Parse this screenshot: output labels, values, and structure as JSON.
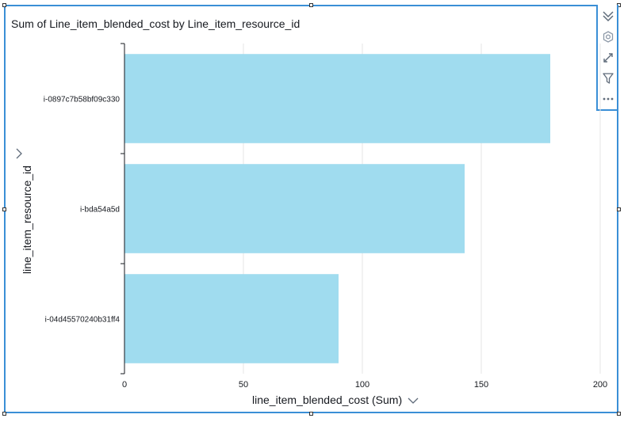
{
  "chart_data": {
    "type": "bar",
    "orientation": "horizontal",
    "title": "Sum of Line_item_blended_cost by Line_item_resource_id",
    "xlabel": "line_item_blended_cost (Sum)",
    "ylabel": "line_item_resource_id",
    "categories": [
      "i-0897c7b58bf09c330",
      "i-bda54a5d",
      "i-04d45570240b31ff4"
    ],
    "values": [
      179,
      143,
      90
    ],
    "xlim": [
      0,
      200
    ],
    "xticks": [
      "0",
      "50",
      "100",
      "150",
      "200"
    ],
    "grid": true,
    "bar_color": "#a0dcef"
  },
  "toolbar": {
    "icons": [
      "collapse-icon",
      "settings-icon",
      "expand-icon",
      "filter-icon",
      "more-options-icon"
    ]
  },
  "colors": {
    "selection_border": "#3a8fd6",
    "grid": "#e6e6e6",
    "axis": "#16191f"
  }
}
